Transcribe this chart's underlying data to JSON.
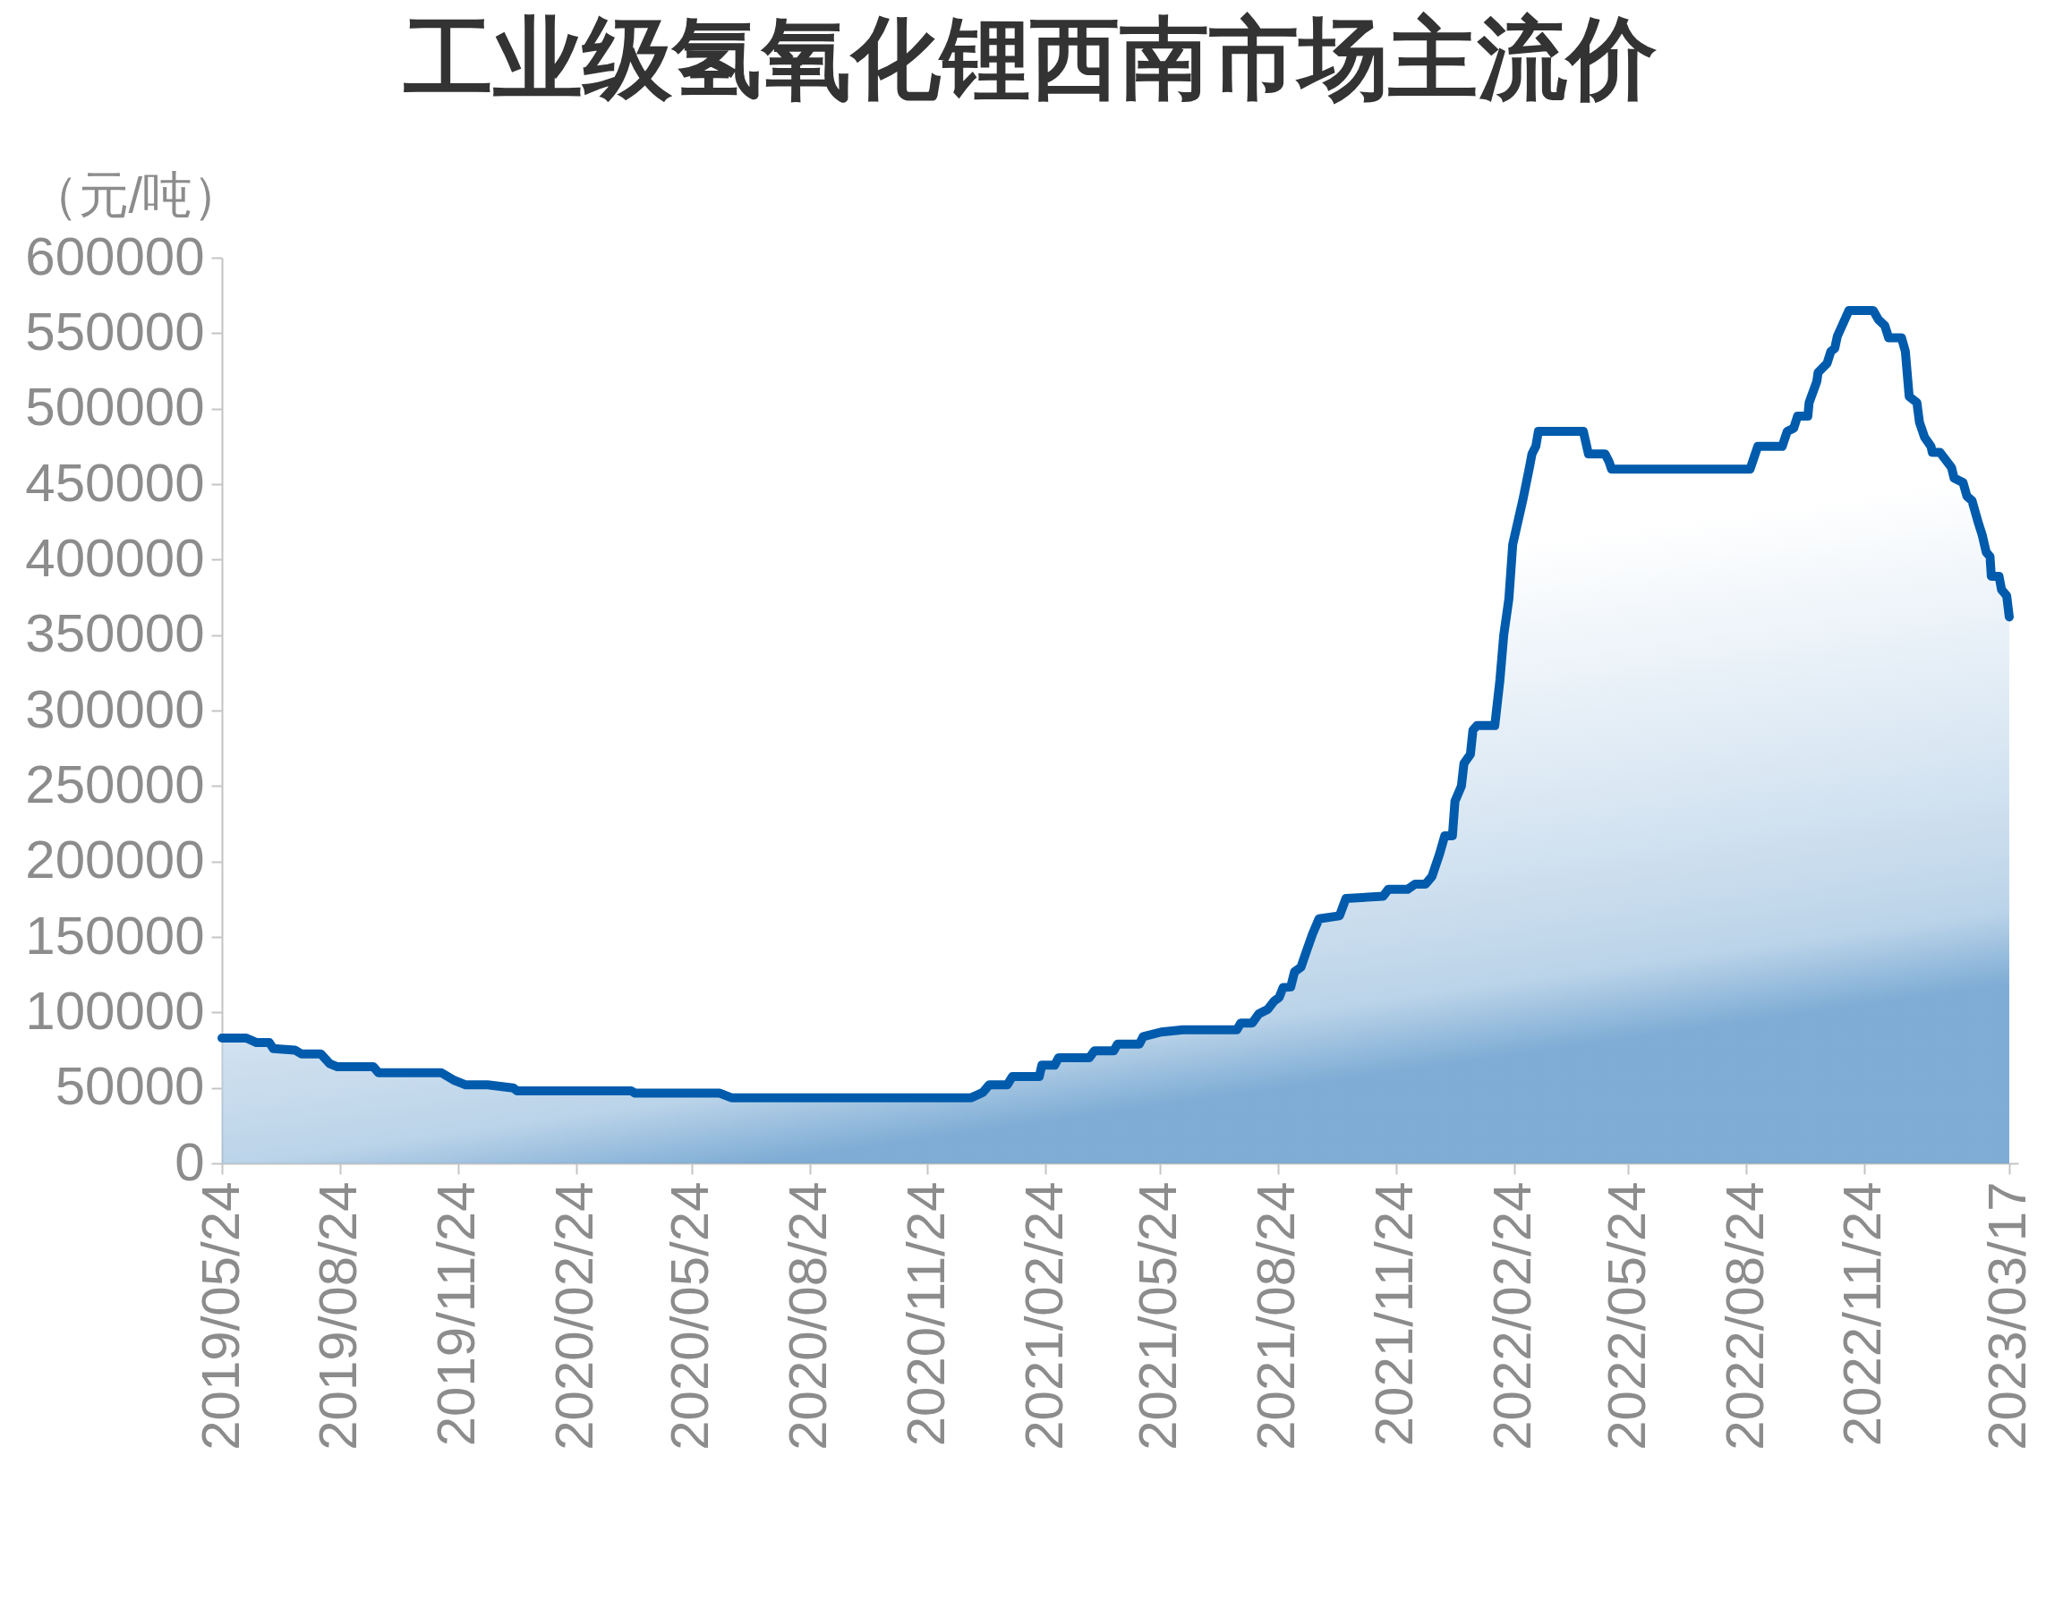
{
  "chart_data": {
    "type": "area",
    "title": "工业级氢氧化锂西南市场主流价",
    "ylabel": "（元/吨）",
    "x": [
      "2019-05-24",
      "2019-06-12",
      "2019-06-20",
      "2019-06-30",
      "2019-07-03",
      "2019-07-20",
      "2019-07-25",
      "2019-08-09",
      "2019-08-16",
      "2019-08-22",
      "2019-09-19",
      "2019-09-23",
      "2019-11-11",
      "2019-11-21",
      "2019-11-30",
      "2019-12-17",
      "2020-01-06",
      "2020-01-09",
      "2020-04-07",
      "2020-04-10",
      "2020-06-15",
      "2020-06-24",
      "2020-12-28",
      "2021-01-06",
      "2021-01-11",
      "2021-01-25",
      "2021-01-29",
      "2021-02-19",
      "2021-02-21",
      "2021-03-03",
      "2021-03-06",
      "2021-03-30",
      "2021-04-03",
      "2021-04-18",
      "2021-04-21",
      "2021-05-08",
      "2021-05-11",
      "2021-05-25",
      "2021-06-11",
      "2021-07-23",
      "2021-07-26",
      "2021-08-04",
      "2021-08-09",
      "2021-08-16",
      "2021-08-21",
      "2021-08-25",
      "2021-08-28",
      "2021-09-03",
      "2021-09-06",
      "2021-09-11",
      "2021-09-15",
      "2021-09-20",
      "2021-09-25",
      "2021-10-11",
      "2021-10-16",
      "2021-11-14",
      "2021-11-18",
      "2021-12-03",
      "2021-12-09",
      "2021-12-17",
      "2021-12-22",
      "2021-12-28",
      "2022-01-01",
      "2022-01-07",
      "2022-01-09",
      "2022-01-14",
      "2022-01-16",
      "2022-01-21",
      "2022-01-23",
      "2022-01-26",
      "2022-02-09",
      "2022-02-13",
      "2022-02-16",
      "2022-02-20",
      "2022-02-23",
      "2022-03-03",
      "2022-03-08",
      "2022-03-10",
      "2022-03-13",
      "2022-03-15",
      "2022-04-19",
      "2022-04-23",
      "2022-05-06",
      "2022-05-09",
      "2022-05-11",
      "2022-08-27",
      "2022-09-02",
      "2022-09-21",
      "2022-09-25",
      "2022-09-30",
      "2022-10-03",
      "2022-10-11",
      "2022-10-12",
      "2022-10-18",
      "2022-10-19",
      "2022-10-26",
      "2022-10-29",
      "2022-11-01",
      "2022-11-03",
      "2022-11-12",
      "2022-12-01",
      "2022-12-05",
      "2022-12-10",
      "2022-12-13",
      "2022-12-23",
      "2022-12-26",
      "2022-12-29",
      "2023-01-04",
      "2023-01-06",
      "2023-01-10",
      "2023-01-15",
      "2023-01-16",
      "2023-01-22",
      "2023-01-31",
      "2023-02-02",
      "2023-02-09",
      "2023-02-12",
      "2023-02-16",
      "2023-02-21",
      "2023-02-24",
      "2023-02-27",
      "2023-03-02",
      "2023-03-03",
      "2023-03-09",
      "2023-03-11",
      "2023-03-15",
      "2023-03-17"
    ],
    "series": [
      {
        "color": "#005bac",
        "values": [
          83000,
          83000,
          80000,
          80000,
          76000,
          75000,
          72500,
          72500,
          66000,
          64000,
          64000,
          60000,
          60000,
          55000,
          52000,
          52000,
          50000,
          48000,
          48000,
          46500,
          46500,
          43500,
          43500,
          47000,
          52000,
          52000,
          57500,
          57500,
          65000,
          65000,
          70000,
          70000,
          74500,
          74500,
          79000,
          79000,
          84000,
          87000,
          88500,
          88500,
          93000,
          93000,
          99000,
          102000,
          107500,
          110000,
          116500,
          117000,
          127000,
          130000,
          140000,
          152000,
          162000,
          164000,
          175500,
          177000,
          181500,
          181500,
          185000,
          185000,
          190000,
          205000,
          217000,
          217000,
          240000,
          250000,
          265000,
          271000,
          287000,
          290000,
          290000,
          320000,
          350000,
          374000,
          410000,
          440000,
          461000,
          470000,
          475000,
          485000,
          485000,
          470000,
          470000,
          465000,
          460000,
          460000,
          475000,
          475000,
          485000,
          487000,
          495000,
          495000,
          504000,
          518000,
          524000,
          530000,
          538000,
          540000,
          548000,
          565000,
          565000,
          559000,
          555000,
          547000,
          547000,
          538000,
          508000,
          504000,
          491000,
          481000,
          475000,
          471000,
          471000,
          461000,
          454000,
          451000,
          442000,
          439000,
          424000,
          416000,
          405000,
          402000,
          389000,
          389000,
          380000,
          376000,
          362000
        ]
      }
    ],
    "xlim": [
      "2019-05-24",
      "2023-03-24"
    ],
    "xticks": [
      {
        "value": "2019-05-24",
        "label": "2019/05/24"
      },
      {
        "value": "2019-08-24",
        "label": "2019/08/24"
      },
      {
        "value": "2019-11-24",
        "label": "2019/11/24"
      },
      {
        "value": "2020-02-24",
        "label": "2020/02/24"
      },
      {
        "value": "2020-05-24",
        "label": "2020/05/24"
      },
      {
        "value": "2020-08-24",
        "label": "2020/08/24"
      },
      {
        "value": "2020-11-24",
        "label": "2020/11/24"
      },
      {
        "value": "2021-02-24",
        "label": "2021/02/24"
      },
      {
        "value": "2021-05-24",
        "label": "2021/05/24"
      },
      {
        "value": "2021-08-24",
        "label": "2021/08/24"
      },
      {
        "value": "2021-11-24",
        "label": "2021/11/24"
      },
      {
        "value": "2022-02-24",
        "label": "2022/02/24"
      },
      {
        "value": "2022-05-24",
        "label": "2022/05/24"
      },
      {
        "value": "2022-08-24",
        "label": "2022/08/24"
      },
      {
        "value": "2022-11-24",
        "label": "2022/11/24"
      },
      {
        "value": "2023-03-17",
        "label": "2023/03/17"
      }
    ],
    "ylim": [
      0,
      600000
    ],
    "yticks": [
      0,
      50000,
      100000,
      150000,
      200000,
      250000,
      300000,
      350000,
      400000,
      450000,
      500000,
      550000,
      600000
    ]
  }
}
